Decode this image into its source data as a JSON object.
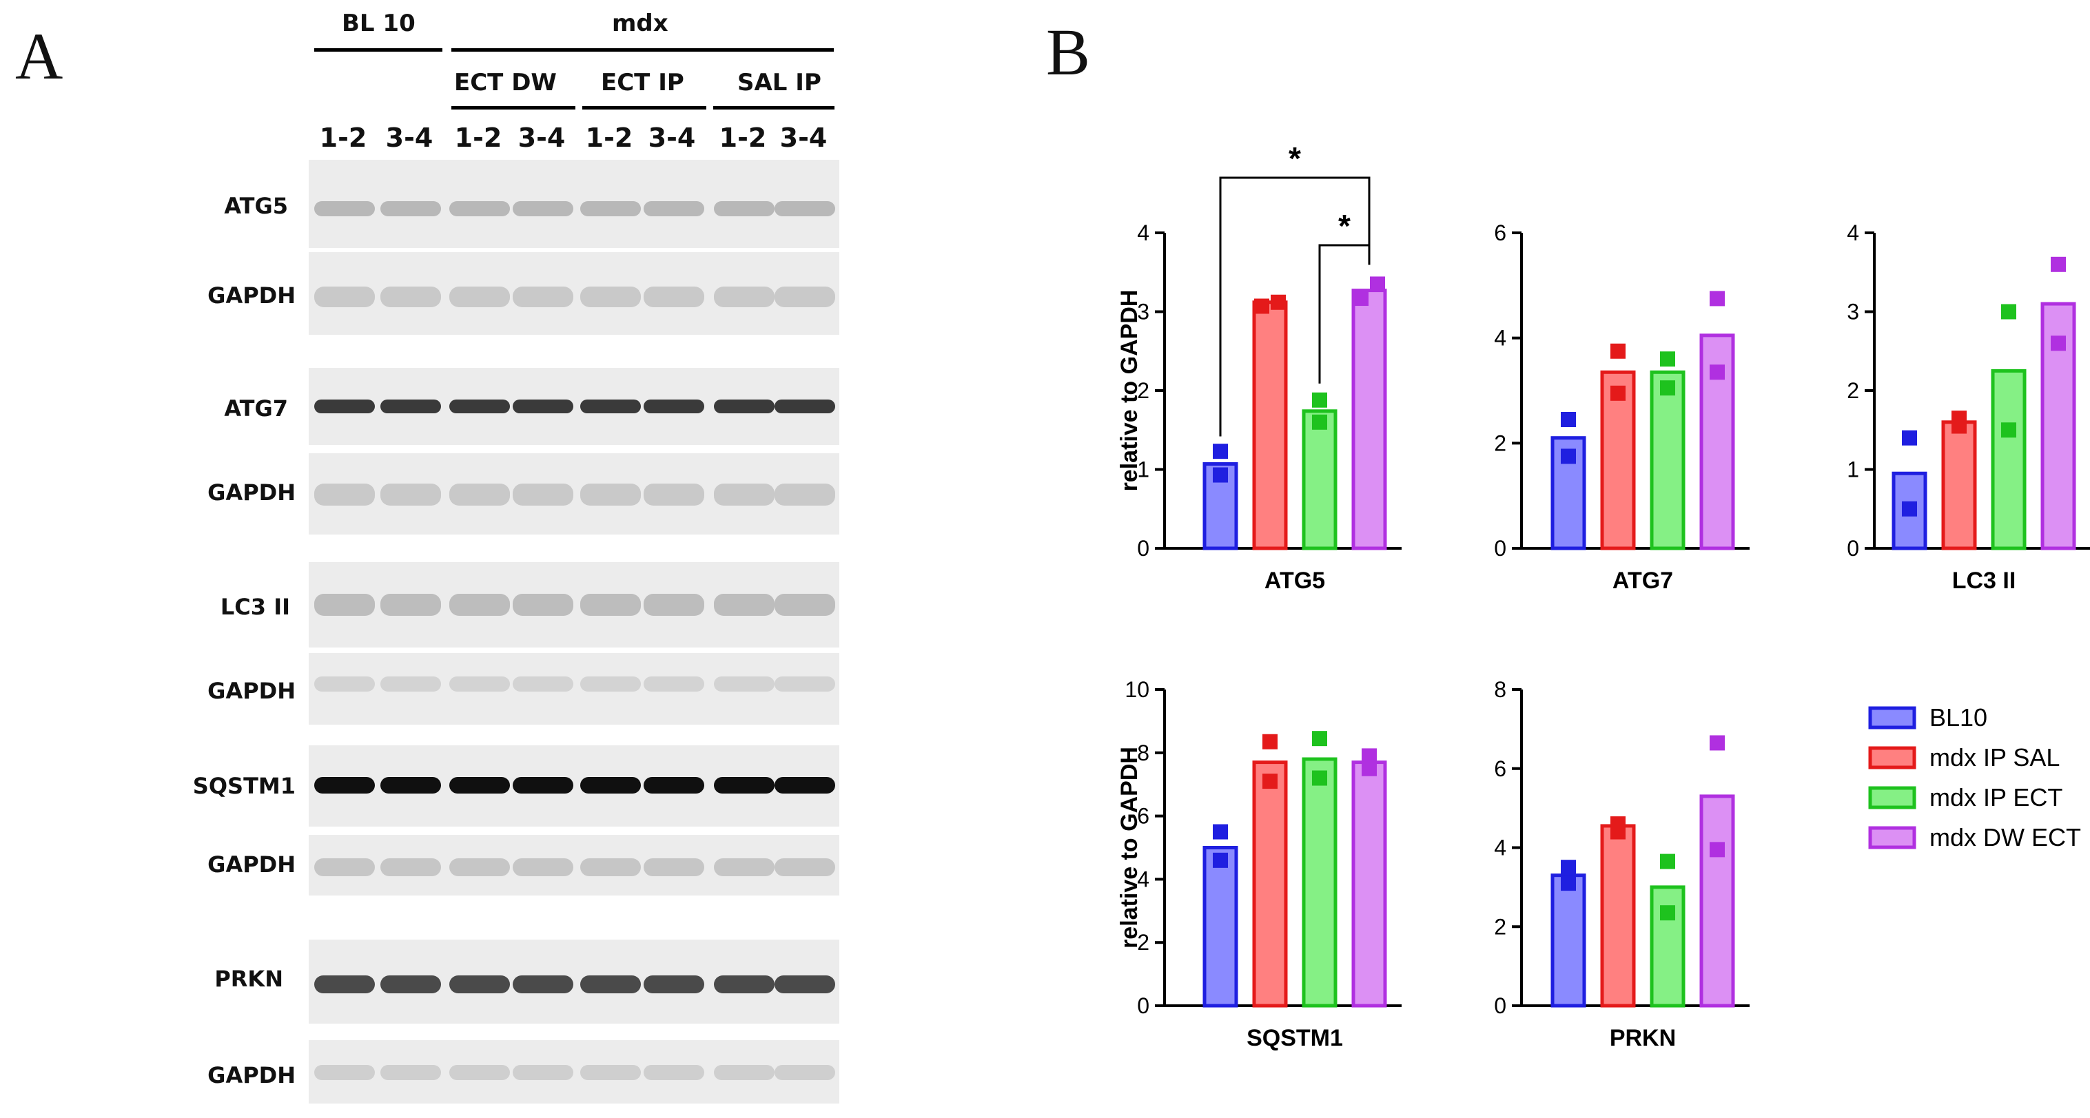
{
  "panels": {
    "a_label": "A",
    "b_label": "B"
  },
  "blot": {
    "group_headers": {
      "control": "BL 10",
      "mdx": "mdx"
    },
    "treatment_headers": [
      "ECT DW",
      "ECT IP",
      "SAL IP"
    ],
    "lane_labels": [
      "1-2",
      "3-4",
      "1-2",
      "3-4",
      "1-2",
      "3-4",
      "1-2",
      "3-4"
    ],
    "rows": [
      {
        "label": "ATG5",
        "kind": "target"
      },
      {
        "label": "GAPDH",
        "kind": "loading"
      },
      {
        "label": "ATG7",
        "kind": "target"
      },
      {
        "label": "GAPDH",
        "kind": "loading"
      },
      {
        "label": "LC3 II",
        "kind": "target"
      },
      {
        "label": "GAPDH",
        "kind": "loading"
      },
      {
        "label": "SQSTM1",
        "kind": "target"
      },
      {
        "label": "GAPDH",
        "kind": "loading"
      },
      {
        "label": "PRKN",
        "kind": "target"
      },
      {
        "label": "GAPDH",
        "kind": "loading"
      }
    ]
  },
  "legend": [
    {
      "name": "BL10",
      "color": "#1f1fe0",
      "fill": "#8a8aff"
    },
    {
      "name": "mdx IP SAL",
      "color": "#e41a1a",
      "fill": "#ff8080"
    },
    {
      "name": "mdx IP ECT",
      "color": "#1ec21e",
      "fill": "#85f085"
    },
    {
      "name": "mdx DW ECT",
      "color": "#b030e0",
      "fill": "#dc90f4"
    }
  ],
  "chart_data": [
    {
      "type": "bar",
      "title": "ATG5",
      "ylabel": "relative to GAPDH",
      "ylim": [
        0,
        4
      ],
      "yticks": [
        0,
        1,
        2,
        3,
        4
      ],
      "categories": [
        "BL10",
        "mdx IP SAL",
        "mdx IP ECT",
        "mdx DW ECT"
      ],
      "values": [
        1.07,
        3.12,
        1.74,
        3.27
      ],
      "points": [
        [
          1.23,
          0.93
        ],
        [
          3.07,
          3.12
        ],
        [
          1.88,
          1.6
        ],
        [
          3.17,
          3.35
        ]
      ],
      "significance": [
        {
          "from": "BL10",
          "to": "mdx DW ECT",
          "label": "*"
        },
        {
          "from": "mdx IP ECT",
          "to": "mdx DW ECT",
          "label": "*"
        }
      ]
    },
    {
      "type": "bar",
      "title": "ATG7",
      "ylabel": "",
      "ylim": [
        0,
        6
      ],
      "yticks": [
        0,
        2,
        4,
        6
      ],
      "categories": [
        "BL10",
        "mdx IP SAL",
        "mdx IP ECT",
        "mdx DW ECT"
      ],
      "values": [
        2.1,
        3.35,
        3.35,
        4.05
      ],
      "points": [
        [
          2.45,
          1.75
        ],
        [
          3.75,
          2.95
        ],
        [
          3.6,
          3.05
        ],
        [
          4.75,
          3.35
        ]
      ]
    },
    {
      "type": "bar",
      "title": "LC3 II",
      "ylabel": "",
      "ylim": [
        0,
        4
      ],
      "yticks": [
        0,
        1,
        2,
        3,
        4
      ],
      "categories": [
        "BL10",
        "mdx IP SAL",
        "mdx IP ECT",
        "mdx DW ECT"
      ],
      "values": [
        0.95,
        1.6,
        2.25,
        3.1
      ],
      "points": [
        [
          1.4,
          0.5
        ],
        [
          1.55,
          1.65
        ],
        [
          3.0,
          1.5
        ],
        [
          3.6,
          2.6
        ]
      ]
    },
    {
      "type": "bar",
      "title": "SQSTM1",
      "ylabel": "relative to GAPDH",
      "ylim": [
        0,
        10
      ],
      "yticks": [
        0,
        2,
        4,
        6,
        8,
        10
      ],
      "categories": [
        "BL10",
        "mdx IP SAL",
        "mdx IP ECT",
        "mdx DW ECT"
      ],
      "values": [
        5.0,
        7.7,
        7.8,
        7.7
      ],
      "points": [
        [
          5.5,
          4.6
        ],
        [
          8.35,
          7.1
        ],
        [
          8.45,
          7.2
        ],
        [
          7.5,
          7.9
        ]
      ]
    },
    {
      "type": "bar",
      "title": "PRKN",
      "ylabel": "",
      "ylim": [
        0,
        8
      ],
      "yticks": [
        0,
        2,
        4,
        6,
        8
      ],
      "categories": [
        "BL10",
        "mdx IP SAL",
        "mdx IP ECT",
        "mdx DW ECT"
      ],
      "values": [
        3.3,
        4.55,
        3.0,
        5.3
      ],
      "points": [
        [
          3.5,
          3.1
        ],
        [
          4.4,
          4.6
        ],
        [
          3.65,
          2.35
        ],
        [
          6.65,
          3.95
        ]
      ]
    }
  ]
}
